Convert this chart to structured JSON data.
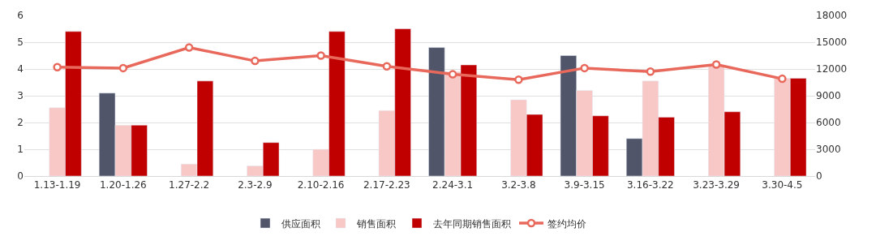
{
  "chart_data": {
    "type": "bar",
    "categories": [
      "1.13-1.19",
      "1.20-1.26",
      "1.27-2.2",
      "2.3-2.9",
      "2.10-2.16",
      "2.17-2.23",
      "2.24-3.1",
      "3.2-3.8",
      "3.9-3.15",
      "3.16-3.22",
      "3.23-3.29",
      "3.30-4.5"
    ],
    "series": [
      {
        "name": "供应面积",
        "color": "#505569",
        "values": [
          null,
          3.1,
          null,
          null,
          null,
          null,
          4.8,
          null,
          4.5,
          1.4,
          null,
          null
        ]
      },
      {
        "name": "销售面积",
        "color": "#f8c8c6",
        "values": [
          2.55,
          1.9,
          0.45,
          0.38,
          1.0,
          2.45,
          3.9,
          2.85,
          3.2,
          3.55,
          4.1,
          3.65
        ]
      },
      {
        "name": "去年同期销售面积",
        "color": "#c00000",
        "values": [
          5.4,
          1.9,
          3.55,
          1.25,
          5.4,
          5.5,
          4.15,
          2.3,
          2.25,
          2.2,
          2.4,
          3.65
        ]
      },
      {
        "name": "签约均价",
        "color": "#e8695c",
        "type": "line",
        "axis": "y2",
        "marker": "circle",
        "values": [
          12200,
          12100,
          14400,
          12900,
          13500,
          12300,
          11400,
          10800,
          12100,
          11700,
          12500,
          10900
        ]
      }
    ],
    "ylim": [
      0,
      6
    ],
    "yticks": [
      0,
      1,
      2,
      3,
      4,
      5,
      6
    ],
    "y2lim": [
      0,
      18000
    ],
    "y2ticks": [
      0,
      3000,
      6000,
      9000,
      12000,
      15000,
      18000
    ],
    "grid": "y",
    "legend": "bottom"
  }
}
